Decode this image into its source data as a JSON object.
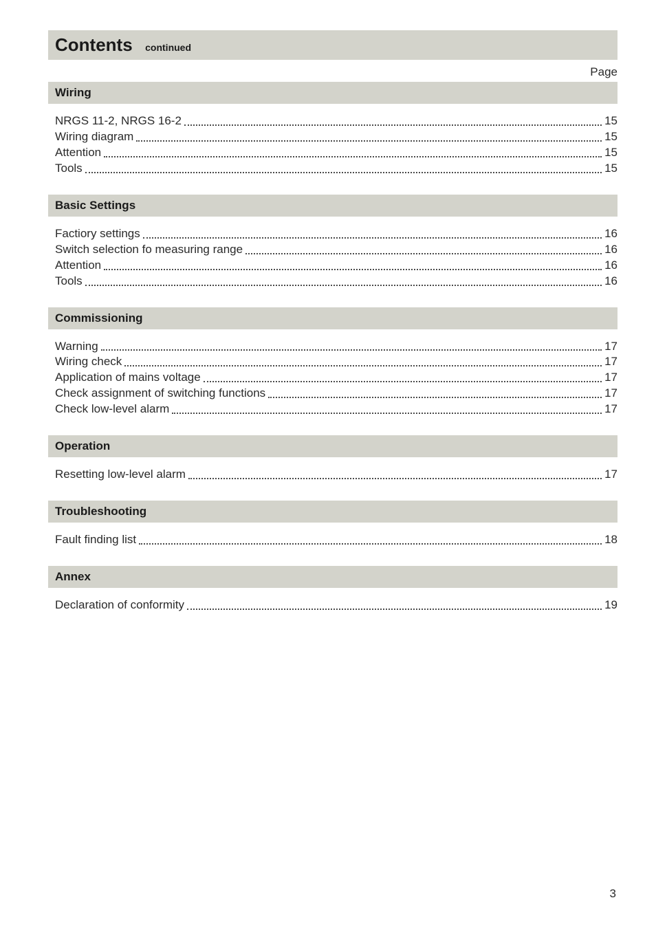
{
  "colors": {
    "page_background": "#ffffff",
    "bar_background": "#d3d3cb",
    "text_color": "#2a2a2a",
    "heading_color": "#1a1a1a",
    "dot_color": "#4a4a4a"
  },
  "typography": {
    "main_title_size_pt": 20,
    "section_title_size_pt": 13,
    "body_size_pt": 13,
    "font_family": "Arial"
  },
  "header": {
    "title": "Contents",
    "subtitle": "continued",
    "page_label": "Page"
  },
  "sections": [
    {
      "title": "Wiring",
      "items": [
        {
          "label": "NRGS 11-2, NRGS 16-2",
          "page": "15"
        },
        {
          "label": "Wiring diagram",
          "page": "15"
        },
        {
          "label": "Attention",
          "page": "15"
        },
        {
          "label": "Tools",
          "page": "15"
        }
      ]
    },
    {
      "title": "Basic Settings",
      "items": [
        {
          "label": "Factiory settings",
          "page": "16"
        },
        {
          "label": "Switch selection fo measuring range",
          "page": "16"
        },
        {
          "label": "Attention",
          "page": "16"
        },
        {
          "label": "Tools",
          "page": "16"
        }
      ]
    },
    {
      "title": "Commissioning",
      "items": [
        {
          "label": "Warning",
          "page": "17"
        },
        {
          "label": "Wiring check",
          "page": "17"
        },
        {
          "label": "Application of mains voltage",
          "page": "17"
        },
        {
          "label": "Check assignment of switching functions",
          "page": "17"
        },
        {
          "label": "Check low-level alarm",
          "page": "17"
        }
      ]
    },
    {
      "title": "Operation",
      "items": [
        {
          "label": "Resetting low-level alarm",
          "page": "17"
        }
      ]
    },
    {
      "title": "Troubleshooting",
      "items": [
        {
          "label": "Fault finding list",
          "page": "18"
        }
      ]
    },
    {
      "title": "Annex",
      "items": [
        {
          "label": "Declaration of conformity",
          "page": "19"
        }
      ]
    }
  ],
  "footer": {
    "page_number": "3"
  }
}
